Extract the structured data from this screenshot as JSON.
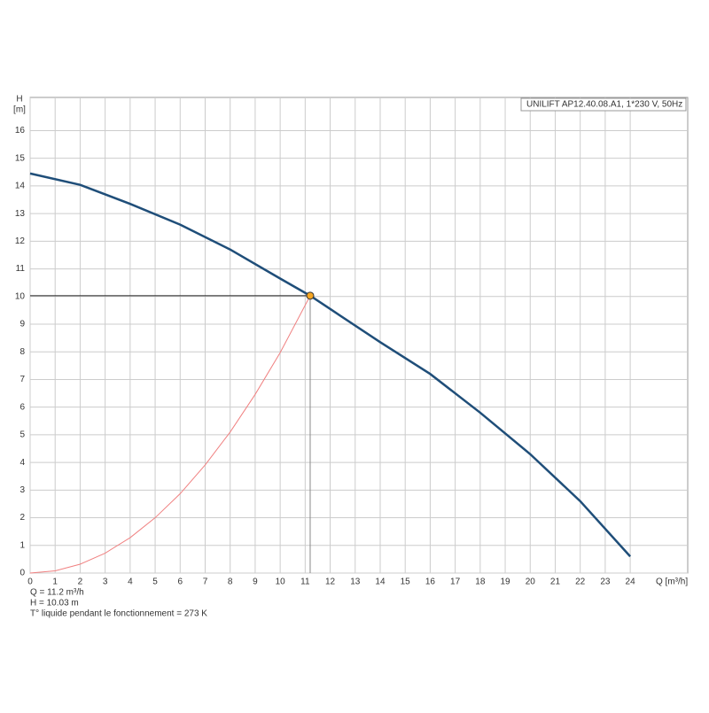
{
  "chart_data": {
    "type": "line",
    "box_label": "UNILIFT AP12.40.08.A1, 1*230 V, 50Hz",
    "y_label": "H",
    "y_unit": "[m]",
    "x_label": "Q [m³/h]",
    "xlim": [
      0,
      26.3
    ],
    "ylim": [
      0,
      17.2
    ],
    "xticks": [
      0,
      1,
      2,
      3,
      4,
      5,
      6,
      7,
      8,
      9,
      10,
      11,
      12,
      13,
      14,
      15,
      16,
      17,
      18,
      19,
      20,
      21,
      22,
      23,
      24
    ],
    "yticks": [
      0,
      1,
      2,
      3,
      4,
      5,
      6,
      7,
      8,
      9,
      10,
      11,
      12,
      13,
      14,
      15,
      16
    ],
    "grid": true,
    "series": [
      {
        "color": "#1f4e79",
        "x": [
          0,
          2,
          4,
          6,
          8,
          10,
          11.2,
          12,
          14,
          16,
          18,
          20,
          22,
          24
        ],
        "values": [
          14.45,
          14.04,
          13.35,
          12.6,
          11.7,
          10.65,
          10.03,
          9.55,
          8.35,
          7.2,
          5.8,
          4.3,
          2.6,
          0.6
        ]
      },
      {
        "color": "#f08080",
        "x": [
          0,
          1,
          2,
          3,
          4,
          5,
          6,
          7,
          8,
          9,
          10,
          11.2
        ],
        "values": [
          0,
          0.08,
          0.32,
          0.72,
          1.28,
          2.0,
          2.87,
          3.91,
          5.1,
          6.46,
          7.97,
          10.03
        ]
      }
    ],
    "operating_point": {
      "x": 11.2,
      "y": 10.03,
      "color": "#f5a623"
    },
    "info_lines": [
      "Q = 11.2 m³/h",
      "H = 10.03 m",
      "T° liquide pendant le fonctionnement = 273 K"
    ]
  }
}
